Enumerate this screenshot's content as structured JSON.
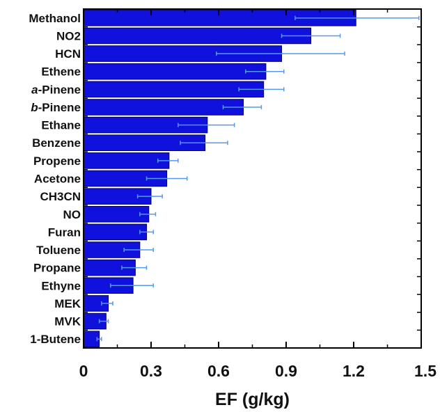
{
  "chart_data": {
    "type": "bar",
    "orientation": "horizontal",
    "categories": [
      "Methanol",
      "NO2",
      "HCN",
      "Ethene",
      "a-Pinene",
      "b-Pinene",
      "Ethane",
      "Benzene",
      "Propene",
      "Acetone",
      "CH3CN",
      "NO",
      "Furan",
      "Toluene",
      "Propane",
      "Ethyne",
      "MEK",
      "MVK",
      "1-Butene"
    ],
    "values": [
      1.21,
      1.01,
      0.88,
      0.81,
      0.8,
      0.71,
      0.55,
      0.54,
      0.38,
      0.37,
      0.3,
      0.29,
      0.28,
      0.25,
      0.23,
      0.22,
      0.11,
      0.1,
      0.07
    ],
    "error_low": [
      0.94,
      0.88,
      0.59,
      0.72,
      0.69,
      0.62,
      0.42,
      0.43,
      0.33,
      0.28,
      0.24,
      0.25,
      0.25,
      0.18,
      0.17,
      0.12,
      0.08,
      0.07,
      0.06
    ],
    "error_high": [
      1.49,
      1.14,
      1.16,
      0.89,
      0.89,
      0.79,
      0.67,
      0.64,
      0.42,
      0.46,
      0.35,
      0.32,
      0.31,
      0.31,
      0.28,
      0.31,
      0.13,
      0.11,
      0.08
    ],
    "xlabel": "EF (g/kg)",
    "ylabel": "",
    "title": "",
    "xlim": [
      0,
      1.5
    ],
    "xticks": [
      "0",
      "0.3",
      "0.6",
      "0.9",
      "1.2",
      "1.5"
    ],
    "colors": {
      "bar": "#1111dd",
      "bar_edge": "#000066",
      "error_bar": "#5599ee"
    },
    "grid": false
  }
}
